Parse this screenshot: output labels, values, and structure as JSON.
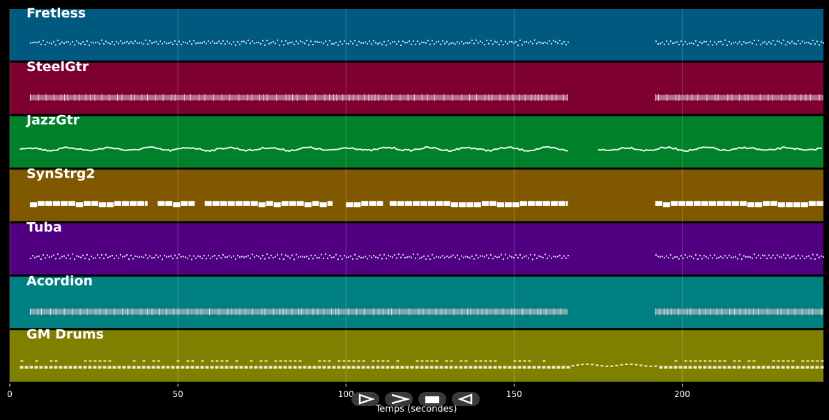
{
  "chart_data": {
    "type": "piano-roll",
    "xlabel": "Temps (secondes)",
    "xlim": [
      0,
      242
    ],
    "xticks": [
      0,
      50,
      100,
      150,
      200
    ],
    "grid": true,
    "tracks": [
      {
        "name": "Fretless",
        "color": "#005a80",
        "style": "wavy",
        "segments": [
          [
            6,
            166
          ],
          [
            192,
            242
          ]
        ]
      },
      {
        "name": "SteelGtr",
        "color": "#7d0030",
        "style": "dense",
        "segments": [
          [
            6,
            166
          ],
          [
            192,
            242
          ]
        ]
      },
      {
        "name": "JazzGtr",
        "color": "#008028",
        "style": "line",
        "segments": [
          [
            3,
            166
          ],
          [
            175,
            242
          ]
        ]
      },
      {
        "name": "SynStrg2",
        "color": "#805800",
        "style": "blocks",
        "segments": [
          [
            6,
            41
          ],
          [
            44,
            55
          ],
          [
            58,
            96
          ],
          [
            100,
            111
          ],
          [
            113,
            166
          ],
          [
            192,
            242
          ]
        ]
      },
      {
        "name": "Tuba",
        "color": "#500080",
        "style": "wavy",
        "segments": [
          [
            6,
            166
          ],
          [
            192,
            242
          ]
        ]
      },
      {
        "name": "Acordion",
        "color": "#008080",
        "style": "dense",
        "segments": [
          [
            6,
            166
          ],
          [
            192,
            242
          ]
        ]
      },
      {
        "name": "GM Drums",
        "color": "#808000",
        "style": "drums",
        "segments": [
          [
            3,
            242
          ]
        ]
      }
    ]
  },
  "controls": [
    {
      "name": "play-button",
      "icon": "play-icon"
    },
    {
      "name": "forward-button",
      "icon": "fast-forward-icon"
    },
    {
      "name": "stop-button",
      "icon": "stop-icon"
    },
    {
      "name": "rewind-button",
      "icon": "rewind-icon"
    }
  ]
}
